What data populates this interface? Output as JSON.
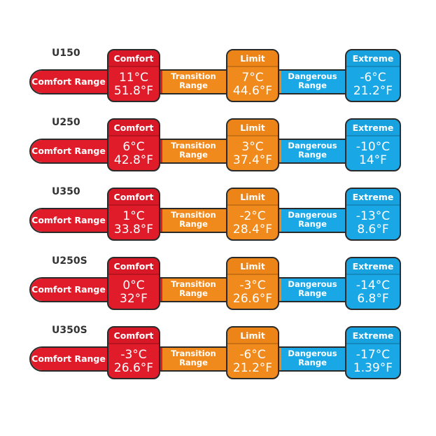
{
  "columns": {
    "comfort": "Comfort",
    "limit": "Limit",
    "extreme": "Extreme",
    "comfort_range": "Comfort Range",
    "transition_range": [
      "Transition",
      "Range"
    ],
    "dangerous_range": [
      "Dangerous",
      "Range"
    ]
  },
  "rows": [
    {
      "model": "U150",
      "comfort_c": "11°C",
      "comfort_f": "51.8°F",
      "limit_c": "7°C",
      "limit_f": "44.6°F",
      "extreme_c": "-6°C",
      "extreme_f": "21.2°F"
    },
    {
      "model": "U250",
      "comfort_c": "6°C",
      "comfort_f": "42.8°F",
      "limit_c": "3°C",
      "limit_f": "37.4°F",
      "extreme_c": "-10°C",
      "extreme_f": "14°F"
    },
    {
      "model": "U350",
      "comfort_c": "1°C",
      "comfort_f": "33.8°F",
      "limit_c": "-2°C",
      "limit_f": "28.4°F",
      "extreme_c": "-13°C",
      "extreme_f": "8.6°F"
    },
    {
      "model": "U250S",
      "comfort_c": "0°C",
      "comfort_f": "32°F",
      "limit_c": "-3°C",
      "limit_f": "26.6°F",
      "extreme_c": "-14°C",
      "extreme_f": "6.8°F"
    },
    {
      "model": "U350S",
      "comfort_c": "-3°C",
      "comfort_f": "26.6°F",
      "limit_c": "-6°C",
      "limit_f": "21.2°F",
      "extreme_c": "-17°C",
      "extreme_f": "1.39°F"
    }
  ],
  "colors": {
    "comfort": "#e01b2a",
    "limit": "#f08a1c",
    "extreme": "#1aa7e6",
    "outline": "#2a2a2a"
  }
}
